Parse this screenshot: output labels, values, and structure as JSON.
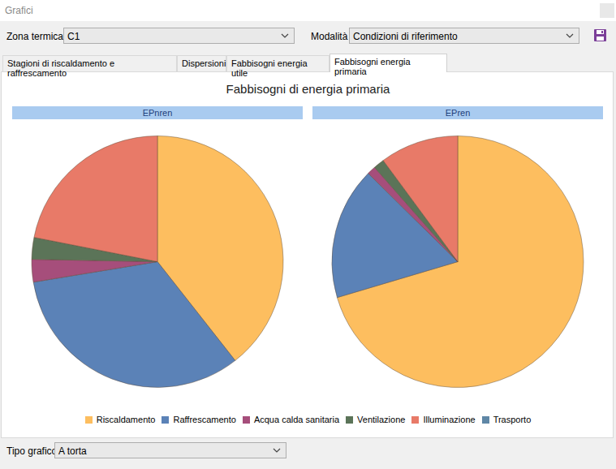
{
  "window": {
    "title": "Grafici"
  },
  "controls": {
    "zone_label": "Zona termica",
    "zone_value": "C1",
    "mode_label": "Modalità",
    "mode_value": "Condizioni di riferimento"
  },
  "tabs": [
    "Stagioni di riscaldamento e raffrescamento",
    "Dispersioni",
    "Fabbisogni energia utile",
    "Fabbisogni energia primaria"
  ],
  "active_tab": 3,
  "panel_title": "Fabbisogni di energia primaria",
  "chart_data": [
    {
      "type": "pie",
      "title": "EPnren",
      "categories": [
        "Riscaldamento",
        "Raffrescamento",
        "Acqua calda sanitaria",
        "Ventilazione",
        "Illuminazione",
        "Trasporto"
      ],
      "values": [
        39.4,
        33.0,
        2.9,
        2.8,
        21.9,
        0
      ],
      "colors": [
        "#fdbe5f",
        "#5b82b7",
        "#a64e7b",
        "#5b7458",
        "#e87a68",
        "#5f87a6"
      ],
      "legend": "bottom"
    },
    {
      "type": "pie",
      "title": "EPren",
      "categories": [
        "Riscaldamento",
        "Raffrescamento",
        "Acqua calda sanitaria",
        "Ventilazione",
        "Illuminazione",
        "Trasporto"
      ],
      "values": [
        70.4,
        17.0,
        1.1,
        1.4,
        10.1,
        0
      ],
      "colors": [
        "#fdbe5f",
        "#5b82b7",
        "#a64e7b",
        "#5b7458",
        "#e87a68",
        "#5f87a6"
      ],
      "legend": "bottom"
    }
  ],
  "chart_type": {
    "label": "Tipo grafico",
    "value": "A torta"
  }
}
